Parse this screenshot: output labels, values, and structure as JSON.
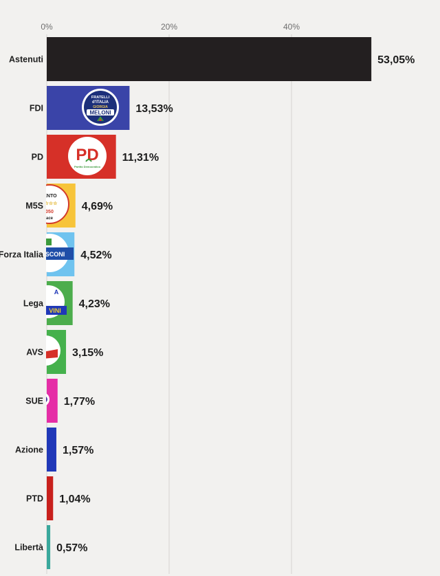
{
  "chart_data": {
    "type": "bar",
    "orientation": "horizontal",
    "x_ticks": [
      "0%",
      "20%",
      "40%"
    ],
    "xlim": [
      0,
      60
    ],
    "grid": true,
    "categories": [
      "Astenuti",
      "FDI",
      "PD",
      "M5S",
      "Forza Italia",
      "Lega",
      "AVS",
      "SUE",
      "Azione",
      "PTD",
      "Libertà"
    ],
    "values": [
      53.05,
      13.53,
      11.31,
      4.69,
      4.52,
      4.23,
      3.15,
      1.77,
      1.57,
      1.04,
      0.57
    ],
    "value_labels": [
      "53,05%",
      "13,53%",
      "11,31%",
      "4,69%",
      "4,52%",
      "4,23%",
      "3,15%",
      "1,77%",
      "1,57%",
      "1,04%",
      "0,57%"
    ],
    "bar_colors": [
      "#231f20",
      "#3a44a8",
      "#d63028",
      "#f7c43a",
      "#6fc3ef",
      "#4cad4c",
      "#45b14c",
      "#e52da6",
      "#2038b8",
      "#c8201c",
      "#3aa89c"
    ],
    "label_colors": [
      "#d42d2d",
      "#1e1e1e",
      "#1e1e1e",
      "#1e1e1e",
      "#1e1e1e",
      "#1e1e1e",
      "#1e1e1e",
      "#1e1e1e",
      "#1e1e1e",
      "#1e1e1e",
      "#1e1e1e"
    ]
  },
  "logos": {
    "fdi": {
      "line1": "FRATELLI",
      "line2": "d'ITALIA",
      "line3": "GIORGIA",
      "line4": "MELONI"
    },
    "pd": {
      "mark": "PD",
      "sub": "Partito Democratico"
    },
    "m5s": {
      "line1": "MENTO",
      "line2": "☆☆☆",
      "line3": "050",
      "line4": "ace"
    },
    "fi": {
      "line1": "SCONI"
    },
    "lega": {
      "line1": "A",
      "line2": "VINI"
    }
  }
}
